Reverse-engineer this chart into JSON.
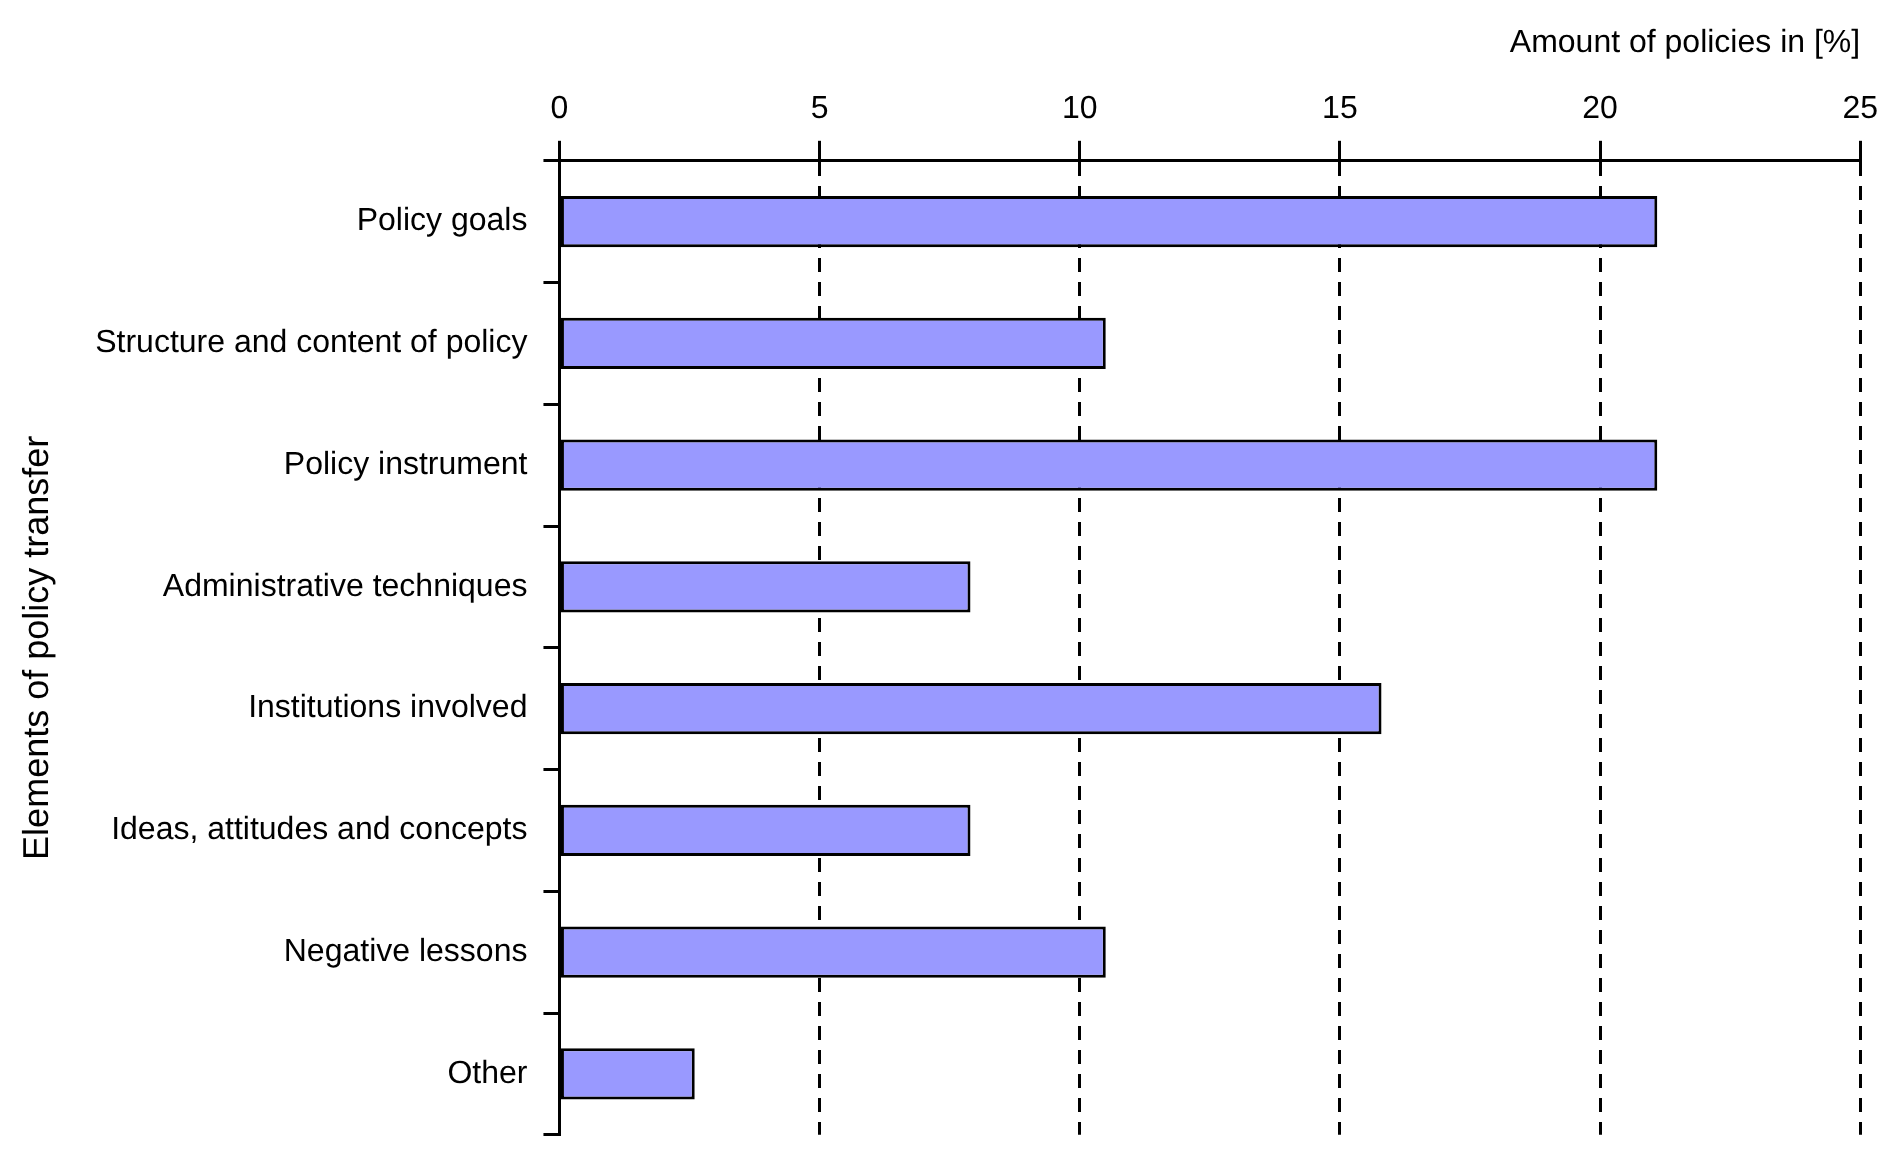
{
  "chart_data": {
    "type": "bar",
    "orientation": "horizontal",
    "xlabel": "Amount of policies in [%]",
    "ylabel": "Elements of policy transfer",
    "categories": [
      "Policy goals",
      "Structure and content of policy",
      "Policy instrument",
      "Administrative techniques",
      "Institutions involved",
      "Ideas, attitudes and concepts",
      "Negative lessons",
      "Other"
    ],
    "values": [
      21.1,
      10.5,
      21.1,
      7.9,
      15.8,
      7.9,
      10.5,
      2.6
    ],
    "color": "#9999ff",
    "xlim": [
      0,
      25
    ],
    "xticks": [
      0,
      5,
      10,
      15,
      20,
      25
    ],
    "grid": "x",
    "legend": false
  }
}
